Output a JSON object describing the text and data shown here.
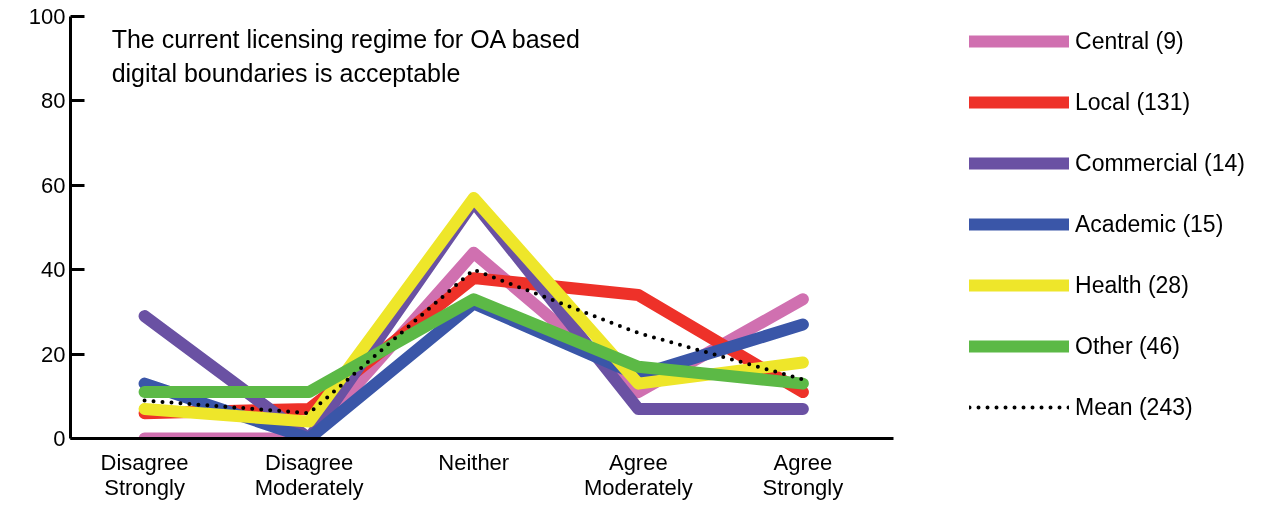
{
  "chart_data": {
    "type": "line",
    "title": "The current licensing regime for OA based\ndigital boundaries is acceptable",
    "categories": [
      "Disagree\nStrongly",
      "Disagree\nModerately",
      "Neither",
      "Agree\nModerately",
      "Agree\nStrongly"
    ],
    "series": [
      {
        "name": "Central (9)",
        "color": "#d070b0",
        "values": [
          0,
          0,
          44,
          11,
          33
        ]
      },
      {
        "name": "Local (131)",
        "color": "#ee3129",
        "values": [
          6,
          7,
          38,
          34,
          11
        ]
      },
      {
        "name": "Commercial (14)",
        "color": "#6a51a3",
        "values": [
          29,
          0,
          56,
          7,
          7
        ]
      },
      {
        "name": "Academic (15)",
        "color": "#3a56a8",
        "values": [
          13,
          0,
          32,
          15,
          27
        ]
      },
      {
        "name": "Health (28)",
        "color": "#eee62a",
        "values": [
          7,
          4,
          57,
          13,
          18
        ]
      },
      {
        "name": "Other (46)",
        "color": "#5cb946",
        "values": [
          11,
          11,
          33,
          17,
          13
        ]
      },
      {
        "name": "Mean (243)",
        "color": "#000000",
        "values": [
          9,
          6,
          40,
          25,
          14
        ],
        "line_style": "dotted"
      }
    ],
    "ylim": [
      0,
      100
    ],
    "yticks": [
      0,
      20,
      40,
      60,
      80,
      100
    ],
    "grid": false,
    "legend": "right",
    "marker": "none"
  }
}
